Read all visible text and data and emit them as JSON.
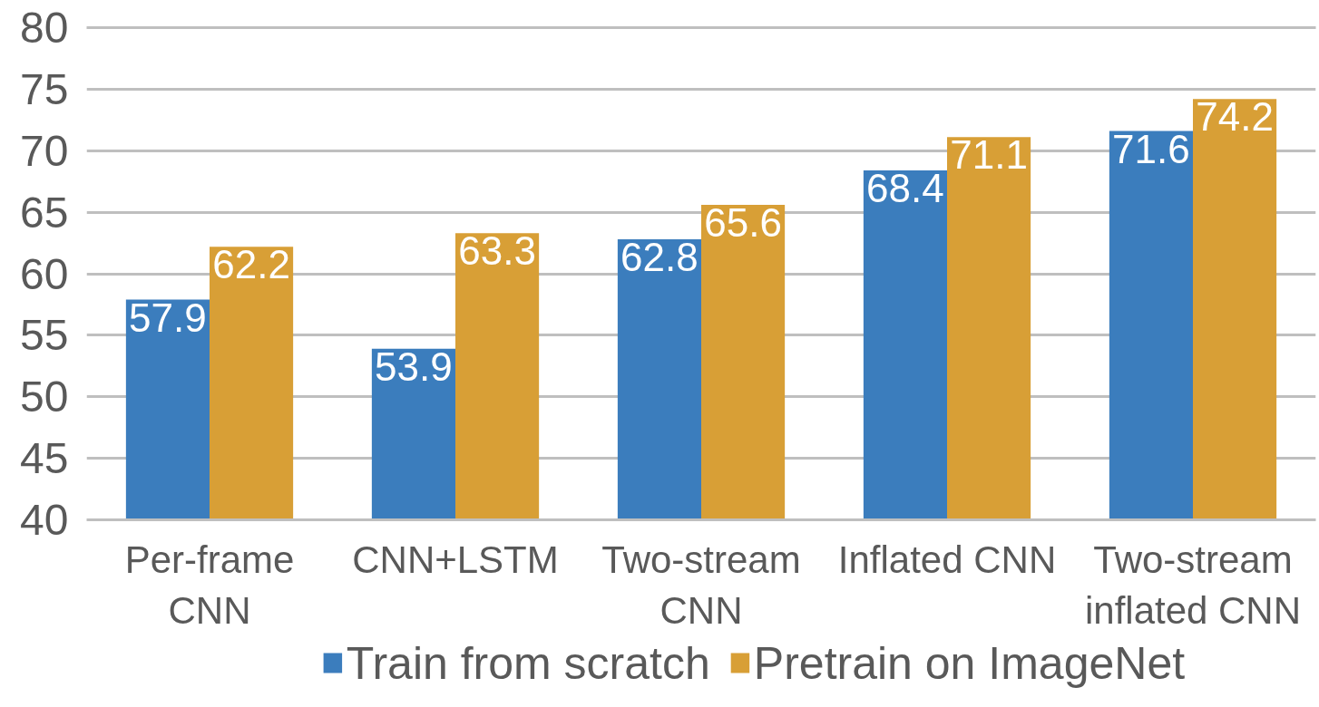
{
  "chart_data": {
    "type": "bar",
    "categories": [
      "Per-frame CNN",
      "CNN+LSTM",
      "Two-stream CNN",
      "Inflated CNN",
      "Two-stream inflated CNN"
    ],
    "series": [
      {
        "name": "Train from scratch",
        "color": "#3b7dbd",
        "values": [
          57.9,
          53.9,
          62.8,
          68.4,
          71.6
        ]
      },
      {
        "name": "Pretrain on ImageNet",
        "color": "#d89f36",
        "values": [
          62.2,
          63.3,
          65.6,
          71.1,
          74.2
        ]
      }
    ],
    "ylim": [
      40,
      80
    ],
    "yticks": [
      40,
      45,
      50,
      55,
      60,
      65,
      70,
      75,
      80
    ],
    "grid": "y",
    "legend": "bottom",
    "data_labels": true
  }
}
